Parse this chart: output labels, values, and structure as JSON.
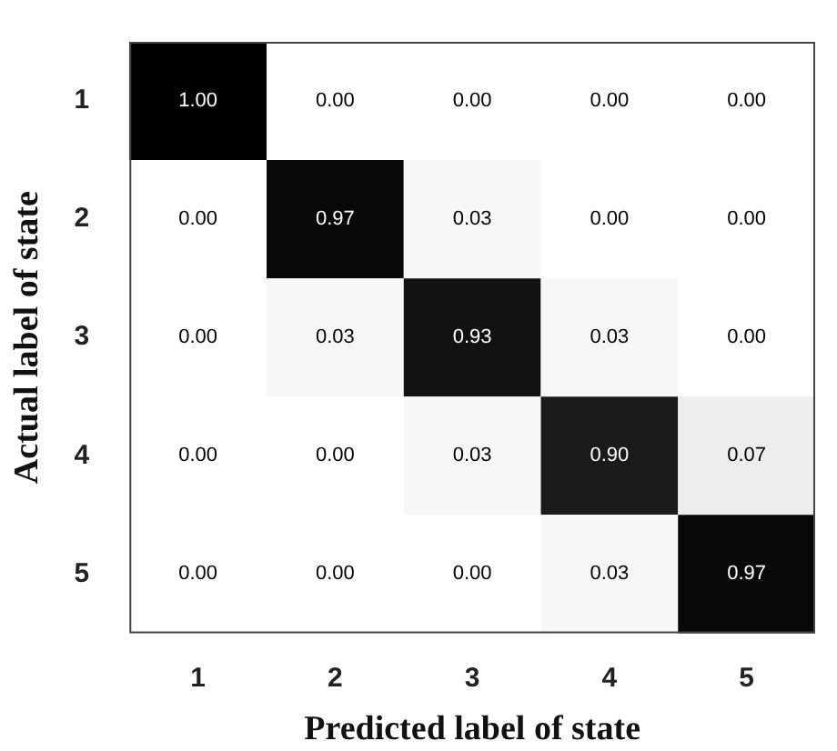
{
  "chart_data": {
    "type": "heatmap",
    "xlabel": "Predicted label of state",
    "ylabel": "Actual label of state",
    "categories": [
      "1",
      "2",
      "3",
      "4",
      "5"
    ],
    "y_categories": [
      "1",
      "2",
      "3",
      "4",
      "5"
    ],
    "cells": [
      [
        1.0,
        0.0,
        0.0,
        0.0,
        0.0
      ],
      [
        0.0,
        0.97,
        0.03,
        0.0,
        0.0
      ],
      [
        0.0,
        0.03,
        0.93,
        0.03,
        0.0
      ],
      [
        0.0,
        0.0,
        0.03,
        0.9,
        0.07
      ],
      [
        0.0,
        0.0,
        0.0,
        0.03,
        0.97
      ]
    ],
    "cell_labels": [
      [
        "1.00",
        "0.00",
        "0.00",
        "0.00",
        "0.00"
      ],
      [
        "0.00",
        "0.97",
        "0.03",
        "0.00",
        "0.00"
      ],
      [
        "0.00",
        "0.03",
        "0.93",
        "0.03",
        "0.00"
      ],
      [
        "0.00",
        "0.00",
        "0.03",
        "0.90",
        "0.07"
      ],
      [
        "0.00",
        "0.00",
        "0.00",
        "0.03",
        "0.97"
      ]
    ]
  }
}
